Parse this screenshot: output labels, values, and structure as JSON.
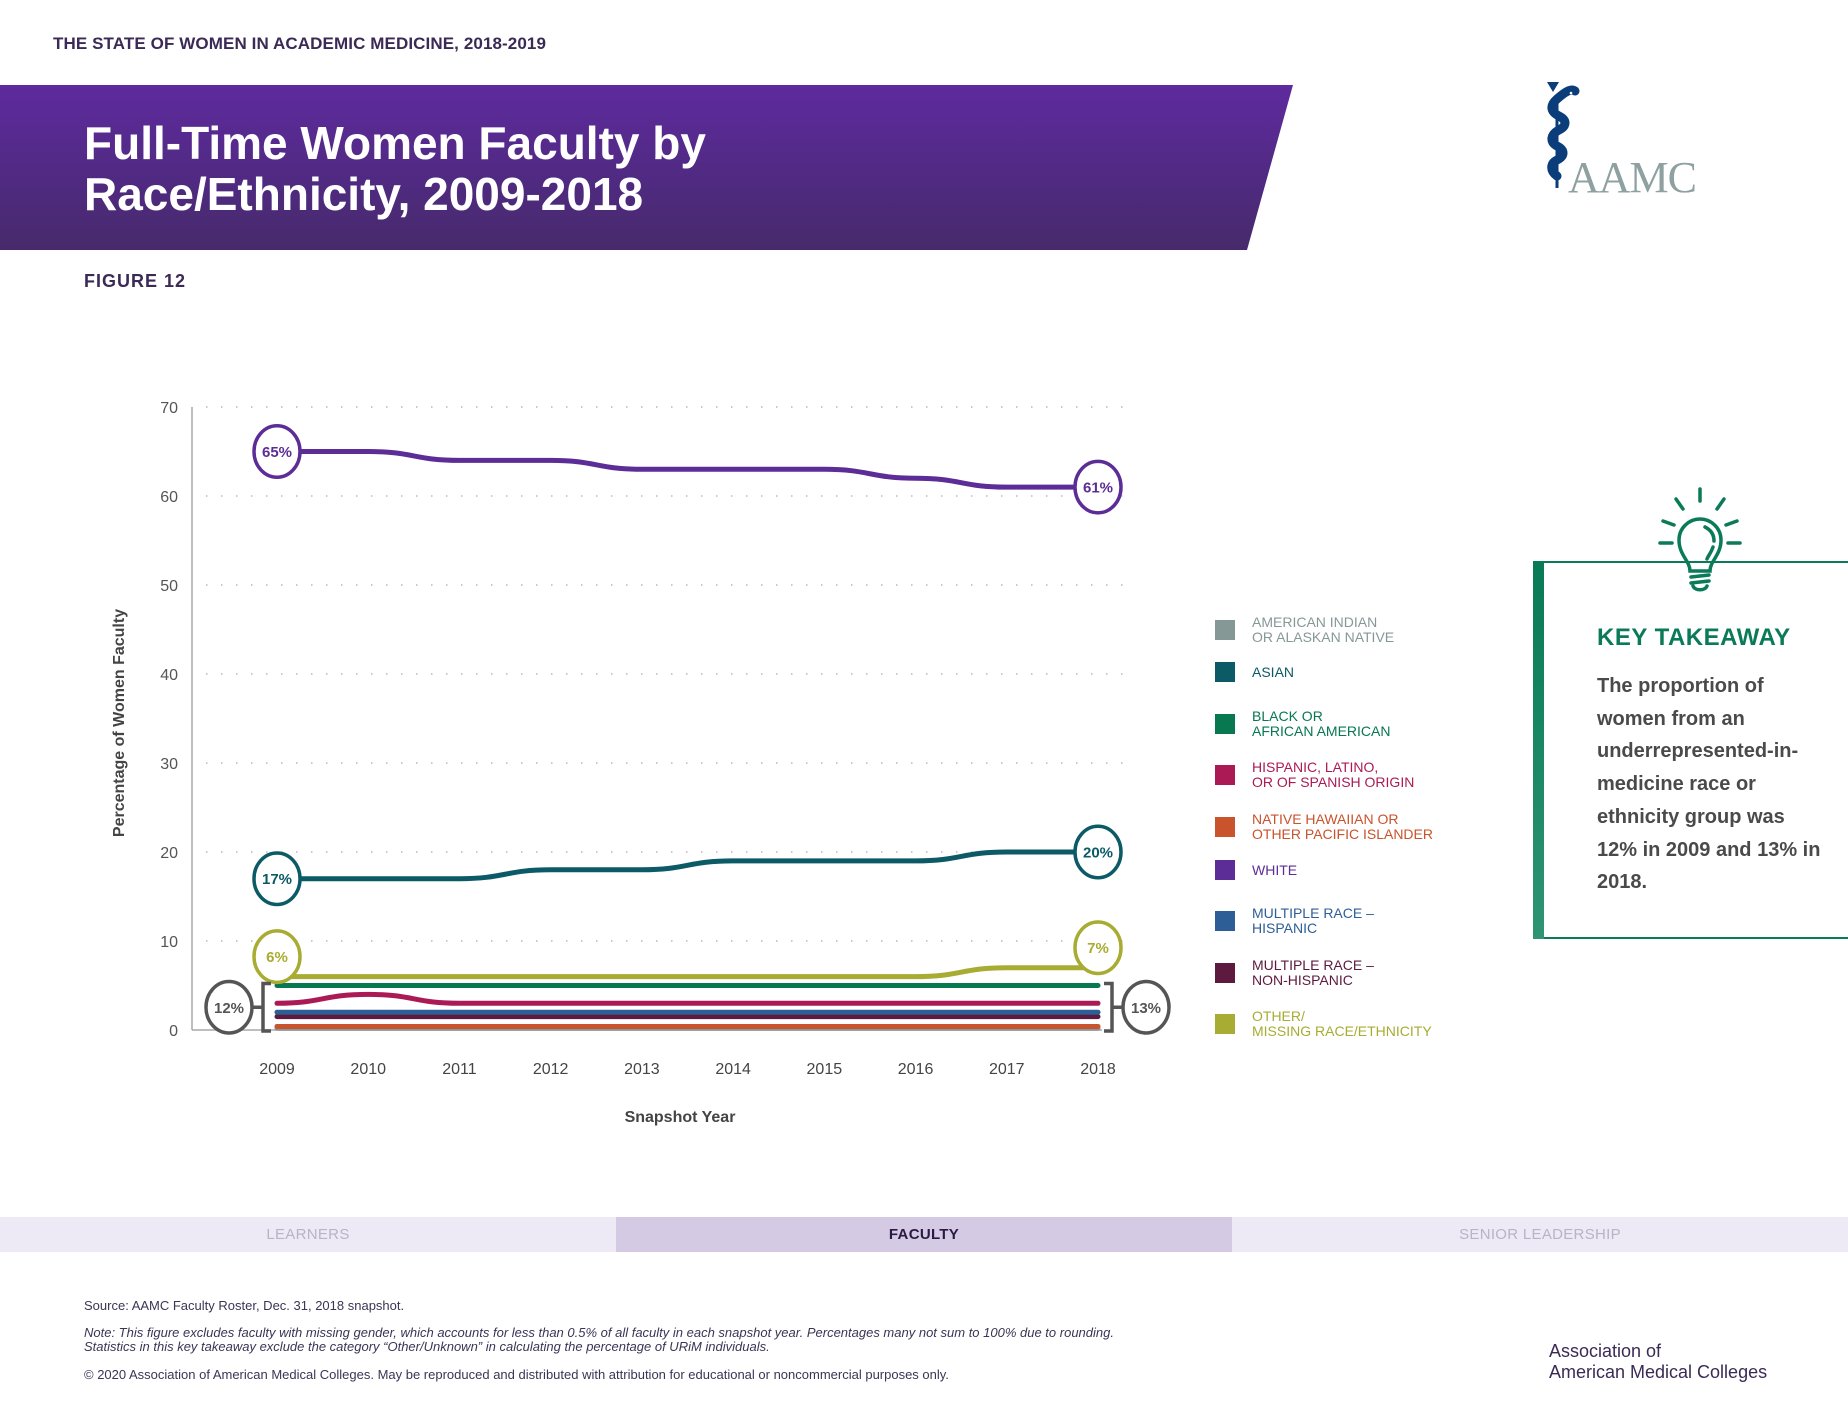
{
  "header": {
    "report_title": "THE STATE OF WOMEN IN ACADEMIC MEDICINE, 2018-2019",
    "banner_title_line1": "Full-Time Women Faculty by",
    "banner_title_line2": "Race/Ethnicity, 2009-2018",
    "figure_label": "FIGURE 12",
    "logo_text": "AAMC",
    "banner_color": "#5e2a9e"
  },
  "chart_data": {
    "type": "line",
    "title": "Full-Time Women Faculty by Race/Ethnicity, 2009-2018",
    "xlabel": "Snapshot Year",
    "ylabel": "Percentage of Women Faculty",
    "x": [
      "2009",
      "2010",
      "2011",
      "2012",
      "2013",
      "2014",
      "2015",
      "2016",
      "2017",
      "2018"
    ],
    "ylim": [
      0,
      70
    ],
    "yticks": [
      0,
      10,
      20,
      30,
      40,
      50,
      60,
      70
    ],
    "grid": "horizontal-dotted",
    "legend_position": "right",
    "series": [
      {
        "name": "American Indian or Alaskan Native",
        "color": "#869896",
        "values": [
          0.2,
          0.2,
          0.2,
          0.2,
          0.2,
          0.2,
          0.2,
          0.2,
          0.2,
          0.2
        ]
      },
      {
        "name": "Asian",
        "color": "#0b5a66",
        "values": [
          17,
          17,
          17,
          18,
          18,
          19,
          19,
          19,
          20,
          20
        ]
      },
      {
        "name": "Black or African American",
        "color": "#077850",
        "values": [
          5,
          5,
          5,
          5,
          5,
          5,
          5,
          5,
          5,
          5
        ]
      },
      {
        "name": "Hispanic, Latino, or of Spanish Origin",
        "color": "#ac1a55",
        "values": [
          3,
          4,
          3,
          3,
          3,
          3,
          3,
          3,
          3,
          3
        ]
      },
      {
        "name": "Native Hawaiian or Other Pacific Islander",
        "color": "#c9532c",
        "values": [
          0.4,
          0.4,
          0.4,
          0.4,
          0.4,
          0.4,
          0.4,
          0.4,
          0.4,
          0.4
        ]
      },
      {
        "name": "White",
        "color": "#5c2d96",
        "values": [
          65,
          65,
          64,
          64,
          63,
          63,
          63,
          62,
          61,
          61
        ]
      },
      {
        "name": "Multiple Race – Hispanic",
        "color": "#2e5e96",
        "values": [
          2,
          2,
          2,
          2,
          2,
          2,
          2,
          2,
          2,
          2
        ]
      },
      {
        "name": "Multiple Race – Non-Hispanic",
        "color": "#5e1a3e",
        "values": [
          1.5,
          1.5,
          1.5,
          1.5,
          1.5,
          1.5,
          1.5,
          1.5,
          1.5,
          1.5
        ]
      },
      {
        "name": "Other/Missing Race/Ethnicity",
        "color": "#a8ac32",
        "values": [
          6,
          6,
          6,
          6,
          6,
          6,
          6,
          6,
          7,
          7
        ]
      }
    ],
    "annotations": [
      {
        "series": "White",
        "x": "2009",
        "label": "65%"
      },
      {
        "series": "White",
        "x": "2018",
        "label": "61%"
      },
      {
        "series": "Asian",
        "x": "2009",
        "label": "17%"
      },
      {
        "series": "Asian",
        "x": "2018",
        "label": "20%"
      },
      {
        "series": "Other/Missing Race/Ethnicity",
        "x": "2009",
        "label": "6%"
      },
      {
        "series": "Other/Missing Race/Ethnicity",
        "x": "2018",
        "label": "7%"
      },
      {
        "series": "URiM bracket",
        "x": "2009",
        "label": "12%"
      },
      {
        "series": "URiM bracket",
        "x": "2018",
        "label": "13%"
      }
    ]
  },
  "legend": [
    {
      "label": "American Indian\nor Alaskan Native",
      "color": "#869896"
    },
    {
      "label": "Asian",
      "color": "#0b5a66"
    },
    {
      "label": "Black or\nAfrican American",
      "color": "#077850"
    },
    {
      "label": "Hispanic, Latino,\nor of Spanish Origin",
      "color": "#ac1a55"
    },
    {
      "label": "Native Hawaiian or\nOther Pacific Islander",
      "color": "#c9532c"
    },
    {
      "label": "White",
      "color": "#5c2d96"
    },
    {
      "label": "Multiple Race –\nHispanic",
      "color": "#2e5e96"
    },
    {
      "label": "Multiple Race –\nNon-Hispanic",
      "color": "#5e1a3e"
    },
    {
      "label": "Other/\nMissing Race/Ethnicity",
      "color": "#a8ac32"
    }
  ],
  "takeaway": {
    "title": "KEY TAKEAWAY",
    "body": "The proportion of women from an underrepresented-in-medicine race or ethnicity group was 12% in 2009 and 13% in 2018.",
    "accent_color": "#0a7a58"
  },
  "tabs": [
    {
      "label": "LEARNERS",
      "active": false
    },
    {
      "label": "FACULTY",
      "active": true
    },
    {
      "label": "SENIOR LEADERSHIP",
      "active": false
    }
  ],
  "footer": {
    "source": "Source: AAMC Faculty Roster, Dec. 31, 2018 snapshot.",
    "note": "Note: This figure excludes faculty with missing gender, which accounts for less than 0.5% of all faculty in each snapshot year. Percentages many not sum to 100% due to rounding.\nStatistics in this key takeaway exclude the category “Other/Unknown” in calculating the percentage of URiM individuals.",
    "copyright": "© 2020 Association of American Medical Colleges. May be reproduced and distributed with attribution for educational or noncommercial purposes only.",
    "org_name": "Association of\nAmerican Medical Colleges"
  }
}
